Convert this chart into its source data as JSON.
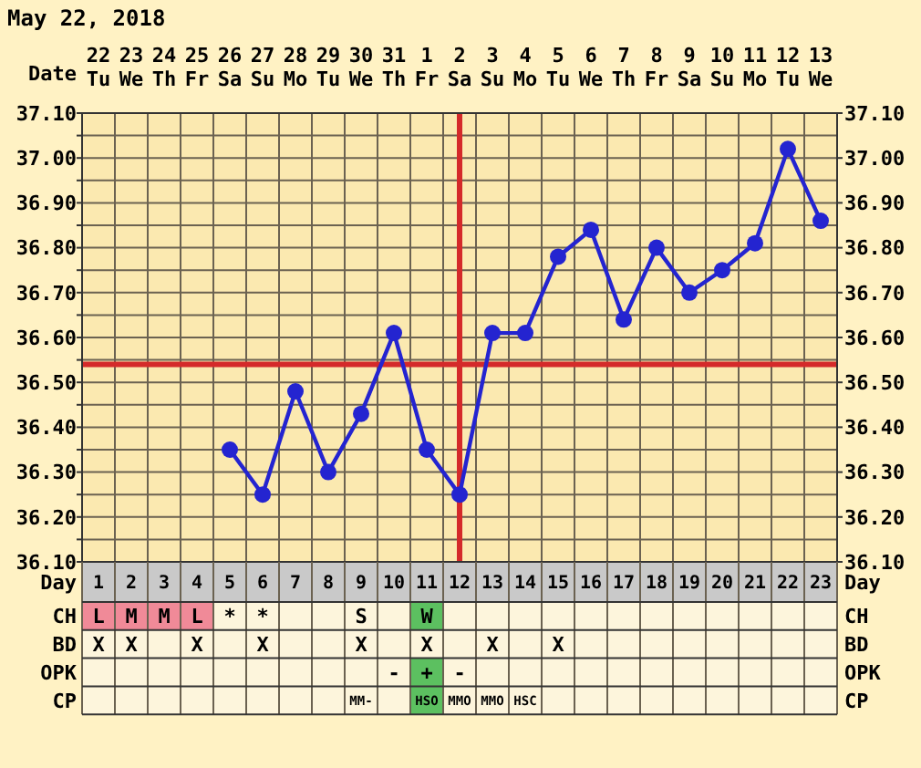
{
  "chart_data": [
    {
      "type": "line",
      "title": "May 22, 2018",
      "xlabel": "Date",
      "x2label": "Day",
      "categories": [
        "22 Tu",
        "23 We",
        "24 Th",
        "25 Fr",
        "26 Sa",
        "27 Su",
        "28 Mo",
        "29 Tu",
        "30 We",
        "31 Th",
        "1 Fr",
        "2 Sa",
        "3 Su",
        "4 Mo",
        "5 Tu",
        "6 We",
        "7 Th",
        "8 Fr",
        "9 Sa",
        "10 Su",
        "11 Mo",
        "12 Tu",
        "13 We"
      ],
      "series": [
        {
          "color": "#2424d0",
          "values": [
            null,
            null,
            null,
            null,
            36.35,
            36.25,
            36.48,
            36.3,
            36.43,
            36.61,
            36.35,
            36.25,
            36.61,
            36.61,
            36.78,
            36.84,
            36.64,
            36.8,
            36.7,
            36.75,
            36.81,
            37.02,
            36.86
          ]
        }
      ],
      "x2lim": [
        0.5,
        23.5
      ],
      "x2ticks": [
        1,
        2,
        3,
        4,
        5,
        6,
        7,
        8,
        9,
        10,
        11,
        12,
        13,
        14,
        15,
        16,
        17,
        18,
        19,
        20,
        21,
        22,
        23
      ],
      "ylim": [
        36.1,
        37.1
      ],
      "yticks": [
        {
          "value": 36.1,
          "label": "36.10"
        },
        {
          "value": 36.15,
          "label": null
        },
        {
          "value": 36.2,
          "label": "36.20"
        },
        {
          "value": 36.25,
          "label": null
        },
        {
          "value": 36.3,
          "label": "36.30"
        },
        {
          "value": 36.35,
          "label": null
        },
        {
          "value": 36.4,
          "label": "36.40"
        },
        {
          "value": 36.45,
          "label": null
        },
        {
          "value": 36.5,
          "label": "36.50"
        },
        {
          "value": 36.55,
          "label": null
        },
        {
          "value": 36.6,
          "label": "36.60"
        },
        {
          "value": 36.65,
          "label": null
        },
        {
          "value": 36.7,
          "label": "36.70"
        },
        {
          "value": 36.75,
          "label": null
        },
        {
          "value": 36.8,
          "label": "36.80"
        },
        {
          "value": 36.85,
          "label": null
        },
        {
          "value": 36.9,
          "label": "36.90"
        },
        {
          "value": 36.95,
          "label": null
        },
        {
          "value": 37.0,
          "label": "37.00"
        },
        {
          "value": 37.05,
          "label": null
        },
        {
          "value": 37.1,
          "label": "37.10"
        }
      ],
      "y2lim": [
        36.1,
        37.1
      ],
      "y2ticks": [
        {
          "value": 36.1,
          "label": "36.10"
        },
        {
          "value": 36.2,
          "label": "36.20"
        },
        {
          "value": 36.3,
          "label": "36.30"
        },
        {
          "value": 36.4,
          "label": "36.40"
        },
        {
          "value": 36.5,
          "label": "36.50"
        },
        {
          "value": 36.6,
          "label": "36.60"
        },
        {
          "value": 36.7,
          "label": "36.70"
        },
        {
          "value": 36.8,
          "label": "36.80"
        },
        {
          "value": 36.9,
          "label": "36.90"
        },
        {
          "value": 37.0,
          "label": "37.00"
        },
        {
          "value": 37.1,
          "label": "37.10"
        }
      ],
      "grid": true,
      "marker": "circle",
      "line_style": "solid",
      "ref_lines": [
        {
          "axis": "y",
          "value": 36.54,
          "color": "#d42a2a"
        },
        {
          "axis": "x",
          "value": "2 Sa",
          "color": "#d42a2a"
        }
      ]
    },
    {
      "type": "other",
      "y_categories": [
        "CH",
        "BD",
        "OPK",
        "CP"
      ],
      "y2_categories": [
        "CH",
        "BD",
        "OPK",
        "CP"
      ],
      "cell_labels": [
        [
          "L",
          "M",
          "M",
          "L",
          "*",
          "*",
          null,
          null,
          "S",
          null,
          "W",
          null,
          null,
          null,
          null,
          null,
          null,
          null,
          null,
          null,
          null,
          null,
          null
        ],
        [
          "X",
          "X",
          null,
          "X",
          null,
          "X",
          null,
          null,
          "X",
          null,
          "X",
          null,
          "X",
          null,
          "X",
          null,
          null,
          null,
          null,
          null,
          null,
          null,
          null
        ],
        [
          null,
          null,
          null,
          null,
          null,
          null,
          null,
          null,
          null,
          "-",
          "+",
          "-",
          null,
          null,
          null,
          null,
          null,
          null,
          null,
          null,
          null,
          null,
          null
        ],
        [
          null,
          null,
          null,
          null,
          null,
          null,
          null,
          null,
          "MM-",
          null,
          "HSO",
          "MMO",
          "MMO",
          "HSC",
          null,
          null,
          null,
          null,
          null,
          null,
          null,
          null,
          null
        ]
      ],
      "colors": [
        [
          "#f08a98",
          "#f08a98",
          "#f08a98",
          "#f08a98",
          null,
          null,
          null,
          null,
          null,
          null,
          "#5cc060",
          null,
          null,
          null,
          null,
          null,
          null,
          null,
          null,
          null,
          null,
          null,
          null
        ],
        [
          null,
          null,
          null,
          null,
          null,
          null,
          null,
          null,
          null,
          null,
          null,
          null,
          null,
          null,
          null,
          null,
          null,
          null,
          null,
          null,
          null,
          null,
          null
        ],
        [
          null,
          null,
          null,
          null,
          null,
          null,
          null,
          null,
          null,
          null,
          "#5cc060",
          null,
          null,
          null,
          null,
          null,
          null,
          null,
          null,
          null,
          null,
          null,
          null
        ],
        [
          null,
          null,
          null,
          null,
          null,
          null,
          null,
          null,
          null,
          null,
          "#5cc060",
          null,
          null,
          null,
          null,
          null,
          null,
          null,
          null,
          null,
          null,
          null,
          null
        ]
      ]
    }
  ]
}
